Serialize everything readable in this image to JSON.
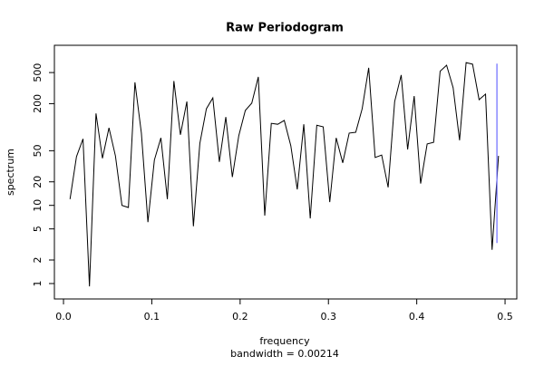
{
  "chart_data": {
    "type": "line",
    "title": "Raw Periodogram",
    "subtitle": "bandwidth = 0.00214",
    "x_label": "frequency",
    "y_label": "spectrum",
    "log_y": true,
    "color": "#000000",
    "x": [
      0.0074,
      0.0147,
      0.0221,
      0.0294,
      0.0368,
      0.0441,
      0.0515,
      0.0588,
      0.0662,
      0.0735,
      0.0809,
      0.0882,
      0.0956,
      0.1029,
      0.1103,
      0.1176,
      0.125,
      0.1324,
      0.1397,
      0.1471,
      0.1544,
      0.1618,
      0.1691,
      0.1765,
      0.1838,
      0.1912,
      0.1985,
      0.2059,
      0.2132,
      0.2206,
      0.2279,
      0.2353,
      0.2426,
      0.25,
      0.2574,
      0.2647,
      0.2721,
      0.2794,
      0.2868,
      0.2941,
      0.3015,
      0.3088,
      0.3162,
      0.3235,
      0.3309,
      0.3382,
      0.3456,
      0.3529,
      0.3603,
      0.3676,
      0.375,
      0.3824,
      0.3897,
      0.3971,
      0.4044,
      0.4118,
      0.4191,
      0.4265,
      0.4338,
      0.4412,
      0.4485,
      0.4559,
      0.4632,
      0.4706,
      0.4779,
      0.4853,
      0.4926
    ],
    "values": [
      12,
      42,
      71,
      0.92,
      150,
      40,
      98,
      43,
      10,
      9.4,
      375,
      84,
      6.1,
      38,
      73,
      12,
      390,
      80,
      213,
      5.4,
      62,
      172,
      237,
      36,
      135,
      23,
      78,
      164,
      203,
      440,
      7.4,
      112,
      109,
      122,
      58,
      16,
      109,
      6.8,
      106,
      101,
      11,
      73,
      35,
      84,
      86,
      172,
      575,
      41,
      44,
      17,
      213,
      465,
      52,
      250,
      19,
      61,
      64,
      520,
      620,
      320,
      68,
      670,
      640,
      225,
      265,
      2.7,
      43
    ],
    "ci_bar": {
      "x": 0.4908,
      "low": 3.3,
      "high": 650,
      "color": "#6a6aff"
    },
    "xlim": [
      -0.0103,
      0.5133
    ],
    "ylim": [
      0.635,
      1116
    ],
    "xticks": [
      {
        "value": 0,
        "label": "0.0"
      },
      0.1,
      0.2,
      0.3,
      0.4,
      0.5
    ],
    "yticks": [
      1,
      2,
      5,
      10,
      20,
      50,
      200,
      500
    ]
  }
}
